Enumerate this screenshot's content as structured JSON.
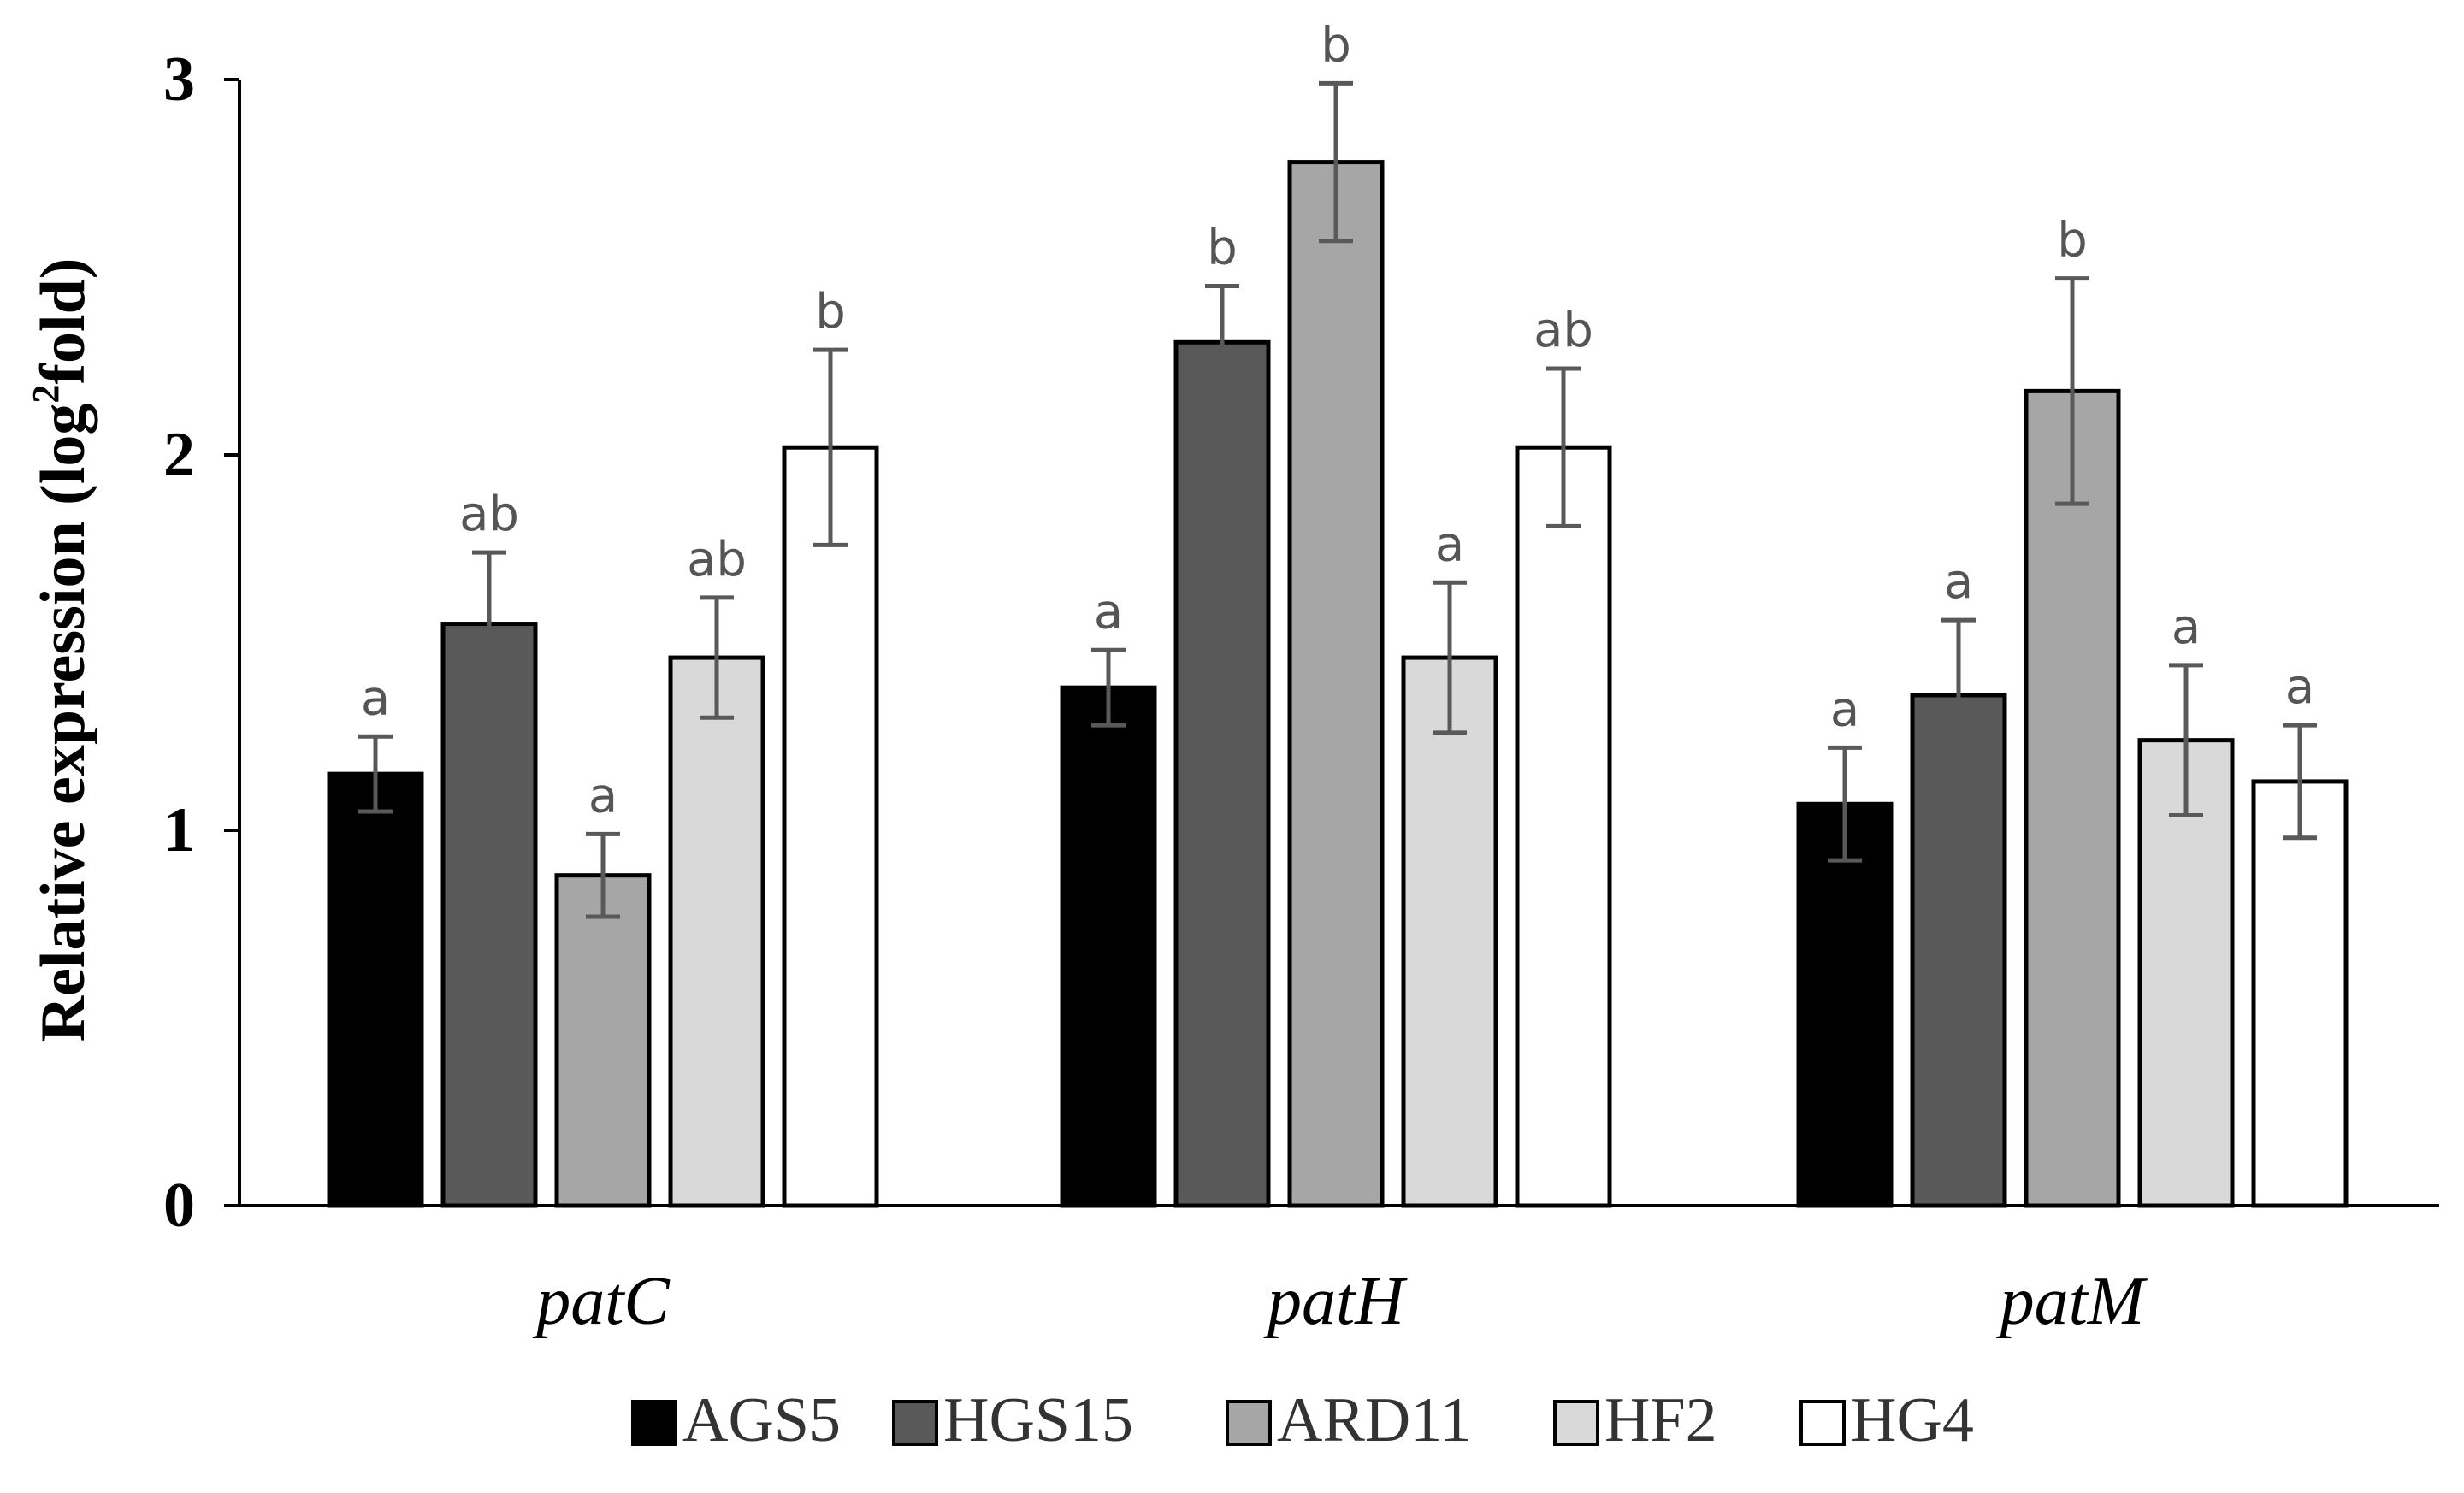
{
  "chart_data": {
    "type": "bar",
    "ylabel": "Relative expression (log",
    "ylabel_sup": "2",
    "ylabel_tail": "fold)",
    "ylim": [
      0,
      3
    ],
    "yticks": [
      "0",
      "1",
      "2",
      "3"
    ],
    "categories": [
      "patC",
      "patH",
      "patM"
    ],
    "series": [
      {
        "name": "AGS5",
        "color": "#000000",
        "values": [
          1.15,
          1.38,
          1.07
        ],
        "errors": [
          0.1,
          0.1,
          0.15
        ],
        "letters": [
          "a",
          "a",
          "a"
        ]
      },
      {
        "name": "HGS15",
        "color": "#595959",
        "values": [
          1.55,
          2.3,
          1.36
        ],
        "errors": [
          0.19,
          0.15,
          0.2
        ],
        "letters": [
          "ab",
          "b",
          "a"
        ]
      },
      {
        "name": "ARD11",
        "color": "#a6a6a6",
        "values": [
          0.88,
          2.78,
          2.17
        ],
        "errors": [
          0.11,
          0.21,
          0.3
        ],
        "letters": [
          "a",
          "b",
          "b"
        ]
      },
      {
        "name": "HF2",
        "color": "#d9d9d9",
        "values": [
          1.46,
          1.46,
          1.24
        ],
        "errors": [
          0.16,
          0.2,
          0.2
        ],
        "letters": [
          "ab",
          "a",
          "a"
        ]
      },
      {
        "name": "HG4",
        "color": "#ffffff",
        "values": [
          2.02,
          2.02,
          1.13
        ],
        "errors": [
          0.26,
          0.21,
          0.15
        ],
        "letters": [
          "b",
          "ab",
          "a"
        ]
      }
    ],
    "legend_position": "bottom",
    "grid": false
  }
}
